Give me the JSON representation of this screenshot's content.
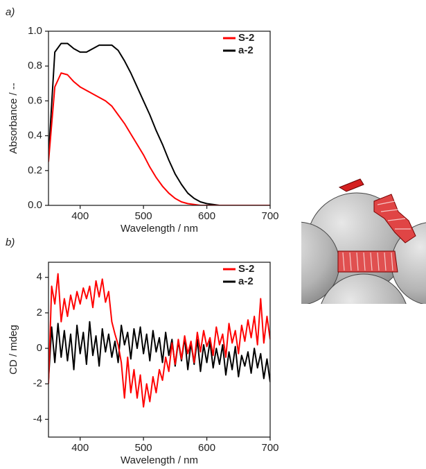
{
  "chart_data": [
    {
      "type": "line",
      "panel_label": "a)",
      "x_label": "Wavelength / nm",
      "y_label": "Absorbance / --",
      "xlim": [
        350,
        700
      ],
      "ylim": [
        0,
        1.0
      ],
      "xticks": [
        400,
        500,
        600,
        700
      ],
      "yticks": [
        {
          "value": 0,
          "label": "0.0"
        },
        0.2,
        0.4,
        0.6,
        0.8,
        {
          "value": 1.0,
          "label": "1.0"
        }
      ],
      "legend": "upper right",
      "x": [
        350,
        360,
        370,
        380,
        390,
        400,
        410,
        420,
        430,
        440,
        450,
        460,
        470,
        480,
        490,
        500,
        510,
        520,
        530,
        540,
        550,
        560,
        570,
        580,
        590,
        600,
        610,
        620,
        630,
        640,
        650,
        660,
        670,
        680,
        690,
        700
      ],
      "series": [
        {
          "name": "S-2",
          "color": "#ff0000",
          "values": [
            0.25,
            0.68,
            0.76,
            0.75,
            0.71,
            0.68,
            0.66,
            0.64,
            0.62,
            0.6,
            0.57,
            0.52,
            0.47,
            0.41,
            0.35,
            0.29,
            0.22,
            0.16,
            0.11,
            0.07,
            0.04,
            0.02,
            0.01,
            0.005,
            0,
            0,
            0,
            0,
            0,
            0,
            0,
            0,
            0,
            0,
            0,
            0
          ]
        },
        {
          "name": "a-2",
          "color": "#000000",
          "values": [
            0.28,
            0.88,
            0.93,
            0.93,
            0.9,
            0.88,
            0.88,
            0.9,
            0.92,
            0.92,
            0.92,
            0.89,
            0.83,
            0.76,
            0.68,
            0.6,
            0.52,
            0.43,
            0.35,
            0.26,
            0.18,
            0.12,
            0.07,
            0.04,
            0.02,
            0.01,
            0.005,
            0,
            0,
            0,
            0,
            0,
            0,
            0,
            0,
            0
          ]
        }
      ]
    },
    {
      "type": "line",
      "panel_label": "b)",
      "x_label": "Wavelength / nm",
      "y_label": "CD / mdeg",
      "xlim": [
        350,
        700
      ],
      "ylim": [
        -5,
        4.85
      ],
      "xticks": [
        400,
        500,
        600,
        700
      ],
      "yticks": [
        -4,
        -2,
        0,
        2,
        4
      ],
      "legend": "upper right",
      "x": [
        350,
        355,
        360,
        365,
        370,
        375,
        380,
        385,
        390,
        395,
        400,
        405,
        410,
        415,
        420,
        425,
        430,
        435,
        440,
        445,
        450,
        455,
        460,
        465,
        470,
        475,
        480,
        485,
        490,
        495,
        500,
        505,
        510,
        515,
        520,
        525,
        530,
        535,
        540,
        545,
        550,
        555,
        560,
        565,
        570,
        575,
        580,
        585,
        590,
        595,
        600,
        605,
        610,
        615,
        620,
        625,
        630,
        635,
        640,
        645,
        650,
        655,
        660,
        665,
        670,
        675,
        680,
        685,
        690,
        695,
        700
      ],
      "series": [
        {
          "name": "S-2",
          "color": "#ff0000",
          "values": [
            -2,
            3.5,
            2.5,
            4.2,
            1.5,
            2.8,
            1.8,
            3,
            2.2,
            3.2,
            2.5,
            3.4,
            2.8,
            3.5,
            2.3,
            3.8,
            2.9,
            3.9,
            2.6,
            3.2,
            1.5,
            0.8,
            0.2,
            -0.8,
            -2.8,
            -0.5,
            -2.5,
            -1.2,
            -2.8,
            -1.5,
            -3.3,
            -2.0,
            -3.0,
            -1.6,
            -2.5,
            -1.2,
            -1.8,
            -0.5,
            -1.3,
            0.3,
            -0.9,
            0.5,
            -0.6,
            0.7,
            -0.3,
            0.4,
            -0.8,
            0.9,
            -0.2,
            1.0,
            0.1,
            0.6,
            -0.4,
            1.2,
            0.2,
            0.8,
            -0.5,
            1.4,
            0.3,
            1.0,
            -0.3,
            1.3,
            0.4,
            1.6,
            0.6,
            1.8,
            0.2,
            2.8,
            0.3,
            1.8,
            0.5
          ]
        },
        {
          "name": "a-2",
          "color": "#000000",
          "values": [
            -1.8,
            1.2,
            -0.8,
            1.4,
            -0.5,
            1.0,
            -0.7,
            0.8,
            -1.2,
            1.3,
            -0.3,
            0.9,
            -0.9,
            1.5,
            -0.4,
            0.7,
            -1.0,
            1.1,
            -0.2,
            0.8,
            -0.5,
            0.4,
            -0.8,
            1.3,
            0.2,
            0.9,
            -0.6,
            1.1,
            0.0,
            1.2,
            -0.3,
            0.8,
            -0.7,
            1.0,
            -0.2,
            0.6,
            -0.8,
            0.9,
            -0.4,
            0.5,
            -1.0,
            0.4,
            -0.7,
            0.6,
            -1.2,
            0.3,
            -0.9,
            0.5,
            -1.3,
            0.2,
            -0.8,
            0.4,
            -1.1,
            0.0,
            -0.9,
            0.2,
            -1.5,
            -0.2,
            -1.2,
            0.1,
            -1.6,
            -0.4,
            -1.0,
            -0.2,
            -1.4,
            0.0,
            -1.1,
            -0.3,
            -1.7,
            -0.6,
            -1.9
          ]
        }
      ]
    }
  ]
}
